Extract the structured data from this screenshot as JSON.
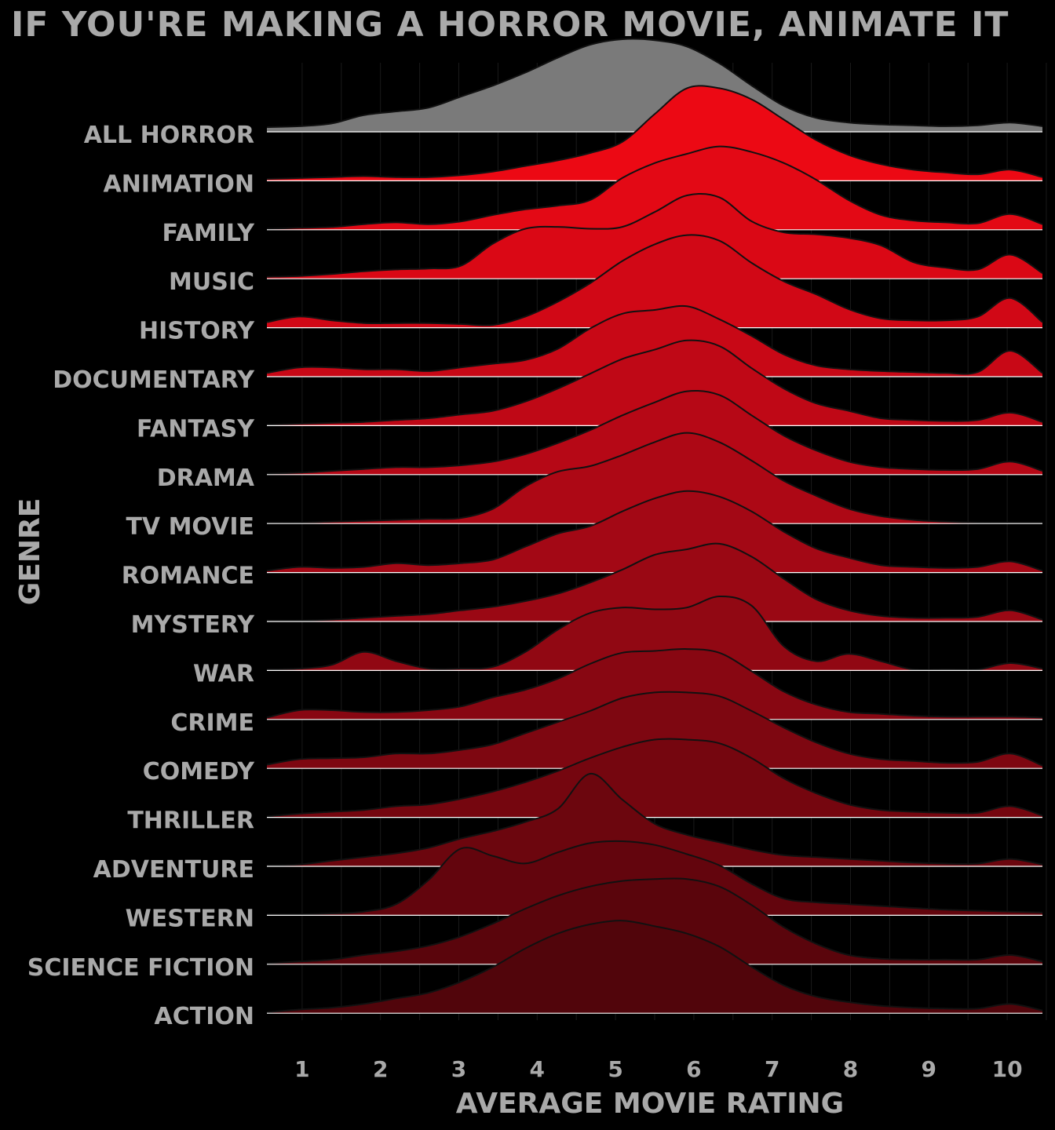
{
  "chart_data": {
    "type": "ridgeline",
    "title": "IF YOU'RE MAKING A HORROR MOVIE, ANIMATE IT",
    "xlabel": "AVERAGE MOVIE RATING",
    "ylabel": "GENRE",
    "xlim": [
      0.55,
      10.45
    ],
    "x_ticks": [
      1,
      2,
      3,
      4,
      5,
      6,
      7,
      8,
      9,
      10
    ],
    "x_grid": [
      1,
      1.5,
      2,
      2.5,
      3,
      3.5,
      4,
      4.5,
      5,
      5.5,
      6,
      6.5,
      7,
      7.5,
      8,
      8.5,
      9,
      9.5,
      10,
      10.5
    ],
    "colors": {
      "background": "#000000",
      "text": "#a9a9a9",
      "baseline": "#ffffff",
      "outline": "#111111",
      "all_horror_fill": "#7a7a7a"
    },
    "series": [
      {
        "name": "ALL HORROR",
        "fill": "#7a7a7a",
        "y": [
          0.05,
          0.06,
          0.09,
          0.18,
          0.22,
          0.26,
          0.38,
          0.5,
          0.64,
          0.8,
          0.94,
          1.0,
          0.99,
          0.92,
          0.74,
          0.5,
          0.28,
          0.15,
          0.1,
          0.08,
          0.07,
          0.06,
          0.07,
          0.1,
          0.06
        ]
      },
      {
        "name": "ANIMATION",
        "fill": "#ec0914",
        "y": [
          0.02,
          0.03,
          0.04,
          0.05,
          0.04,
          0.04,
          0.06,
          0.1,
          0.16,
          0.22,
          0.3,
          0.42,
          0.72,
          1.0,
          1.0,
          0.88,
          0.66,
          0.44,
          0.28,
          0.18,
          0.12,
          0.09,
          0.07,
          0.12,
          0.04
        ]
      },
      {
        "name": "FAMILY",
        "fill": "#e30915",
        "y": [
          0.01,
          0.02,
          0.03,
          0.06,
          0.08,
          0.06,
          0.09,
          0.16,
          0.22,
          0.26,
          0.32,
          0.56,
          0.72,
          0.82,
          0.9,
          0.84,
          0.72,
          0.54,
          0.32,
          0.16,
          0.1,
          0.08,
          0.07,
          0.17,
          0.06
        ]
      },
      {
        "name": "MUSIC",
        "fill": "#da0815",
        "y": [
          0.02,
          0.03,
          0.05,
          0.08,
          0.1,
          0.11,
          0.14,
          0.38,
          0.54,
          0.56,
          0.54,
          0.56,
          0.72,
          0.9,
          0.88,
          0.62,
          0.5,
          0.48,
          0.44,
          0.36,
          0.18,
          0.12,
          0.1,
          0.26,
          0.06
        ]
      },
      {
        "name": "HISTORY",
        "fill": "#d10816",
        "y": [
          0.06,
          0.12,
          0.08,
          0.05,
          0.05,
          0.05,
          0.04,
          0.03,
          0.12,
          0.28,
          0.48,
          0.72,
          0.9,
          1.0,
          0.94,
          0.7,
          0.5,
          0.36,
          0.2,
          0.1,
          0.08,
          0.08,
          0.12,
          0.32,
          0.06
        ]
      },
      {
        "name": "DOCUMENTARY",
        "fill": "#c80816",
        "y": [
          0.04,
          0.1,
          0.1,
          0.08,
          0.08,
          0.06,
          0.1,
          0.14,
          0.18,
          0.3,
          0.52,
          0.68,
          0.72,
          0.76,
          0.62,
          0.44,
          0.24,
          0.12,
          0.08,
          0.06,
          0.05,
          0.04,
          0.05,
          0.28,
          0.04
        ]
      },
      {
        "name": "FANTASY",
        "fill": "#bf0816",
        "y": [
          0.01,
          0.02,
          0.03,
          0.04,
          0.06,
          0.08,
          0.12,
          0.16,
          0.26,
          0.4,
          0.56,
          0.72,
          0.82,
          0.92,
          0.86,
          0.62,
          0.4,
          0.24,
          0.16,
          0.08,
          0.06,
          0.05,
          0.06,
          0.14,
          0.04
        ]
      },
      {
        "name": "DRAMA",
        "fill": "#b60816",
        "y": [
          0.01,
          0.02,
          0.04,
          0.06,
          0.08,
          0.08,
          0.1,
          0.14,
          0.22,
          0.34,
          0.48,
          0.64,
          0.78,
          0.9,
          0.86,
          0.64,
          0.42,
          0.26,
          0.14,
          0.08,
          0.06,
          0.05,
          0.06,
          0.14,
          0.04
        ]
      },
      {
        "name": "TV MOVIE",
        "fill": "#ad0815",
        "y": [
          0.01,
          0.01,
          0.02,
          0.03,
          0.04,
          0.05,
          0.06,
          0.16,
          0.4,
          0.56,
          0.62,
          0.74,
          0.88,
          0.98,
          0.88,
          0.68,
          0.46,
          0.3,
          0.16,
          0.08,
          0.04,
          0.02,
          0.01,
          0.01,
          0.01
        ]
      },
      {
        "name": "ROMANCE",
        "fill": "#a30815",
        "y": [
          0.02,
          0.06,
          0.05,
          0.06,
          0.1,
          0.08,
          0.1,
          0.14,
          0.28,
          0.42,
          0.5,
          0.66,
          0.8,
          0.88,
          0.82,
          0.66,
          0.44,
          0.26,
          0.16,
          0.08,
          0.06,
          0.05,
          0.06,
          0.12,
          0.02
        ]
      },
      {
        "name": "MYSTERY",
        "fill": "#9a0814",
        "y": [
          0.01,
          0.01,
          0.02,
          0.04,
          0.06,
          0.08,
          0.12,
          0.16,
          0.22,
          0.3,
          0.42,
          0.56,
          0.72,
          0.78,
          0.84,
          0.7,
          0.46,
          0.24,
          0.12,
          0.06,
          0.04,
          0.04,
          0.05,
          0.12,
          0.02
        ]
      },
      {
        "name": "WAR",
        "fill": "#910813",
        "y": [
          0.01,
          0.02,
          0.06,
          0.2,
          0.1,
          0.02,
          0.02,
          0.04,
          0.2,
          0.44,
          0.62,
          0.68,
          0.66,
          0.68,
          0.8,
          0.7,
          0.26,
          0.1,
          0.18,
          0.1,
          0.01,
          0.01,
          0.01,
          0.08,
          0.02
        ]
      },
      {
        "name": "CRIME",
        "fill": "#880712",
        "y": [
          0.02,
          0.1,
          0.1,
          0.08,
          0.08,
          0.1,
          0.14,
          0.24,
          0.32,
          0.44,
          0.6,
          0.72,
          0.74,
          0.76,
          0.72,
          0.52,
          0.3,
          0.16,
          0.08,
          0.06,
          0.04,
          0.03,
          0.03,
          0.03,
          0.02
        ]
      },
      {
        "name": "COMEDY",
        "fill": "#7e0711",
        "y": [
          0.04,
          0.1,
          0.11,
          0.12,
          0.16,
          0.16,
          0.2,
          0.26,
          0.38,
          0.5,
          0.62,
          0.76,
          0.82,
          0.82,
          0.78,
          0.62,
          0.44,
          0.28,
          0.16,
          0.1,
          0.08,
          0.06,
          0.07,
          0.16,
          0.03
        ]
      },
      {
        "name": "THRILLER",
        "fill": "#75060f",
        "y": [
          0.01,
          0.04,
          0.06,
          0.08,
          0.12,
          0.14,
          0.2,
          0.28,
          0.38,
          0.5,
          0.64,
          0.76,
          0.84,
          0.84,
          0.8,
          0.64,
          0.42,
          0.26,
          0.14,
          0.08,
          0.06,
          0.05,
          0.05,
          0.12,
          0.02
        ]
      },
      {
        "name": "ADVENTURE",
        "fill": "#6c060e",
        "y": [
          0.01,
          0.02,
          0.06,
          0.1,
          0.14,
          0.2,
          0.3,
          0.38,
          0.48,
          0.62,
          1.0,
          0.72,
          0.46,
          0.34,
          0.26,
          0.18,
          0.12,
          0.1,
          0.08,
          0.06,
          0.04,
          0.03,
          0.03,
          0.08,
          0.02
        ]
      },
      {
        "name": "WESTERN",
        "fill": "#63050d",
        "y": [
          0.01,
          0.01,
          0.02,
          0.04,
          0.12,
          0.38,
          0.72,
          0.64,
          0.56,
          0.68,
          0.78,
          0.8,
          0.76,
          0.66,
          0.54,
          0.34,
          0.18,
          0.14,
          0.12,
          0.1,
          0.08,
          0.06,
          0.05,
          0.04,
          0.03
        ]
      },
      {
        "name": "SCIENCE FICTION",
        "fill": "#5a050c",
        "y": [
          0.01,
          0.03,
          0.05,
          0.1,
          0.14,
          0.2,
          0.3,
          0.44,
          0.6,
          0.74,
          0.84,
          0.9,
          0.92,
          0.92,
          0.84,
          0.64,
          0.4,
          0.22,
          0.1,
          0.06,
          0.05,
          0.05,
          0.05,
          0.1,
          0.03
        ]
      },
      {
        "name": "ACTION",
        "fill": "#51050b",
        "y": [
          0.01,
          0.04,
          0.06,
          0.1,
          0.16,
          0.22,
          0.34,
          0.5,
          0.7,
          0.86,
          0.96,
          1.0,
          0.94,
          0.86,
          0.72,
          0.5,
          0.3,
          0.18,
          0.12,
          0.08,
          0.06,
          0.05,
          0.05,
          0.1,
          0.03
        ]
      }
    ]
  }
}
